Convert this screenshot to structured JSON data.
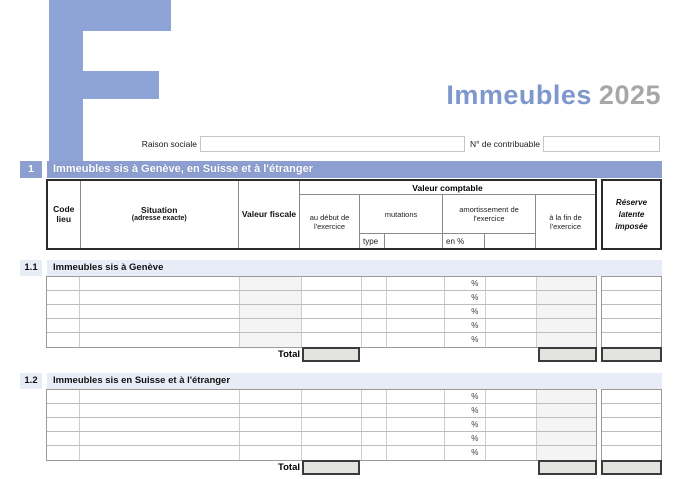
{
  "branding": {
    "form_letter": "F",
    "title_word": "Immeubles",
    "title_year": "2025"
  },
  "fields": {
    "raison_sociale": {
      "label": "Raison sociale",
      "value": ""
    },
    "contribuable": {
      "label": "N° de contribuable",
      "value": ""
    }
  },
  "section1": {
    "number": "1",
    "title": "Immeubles sis à Genève, en Suisse et à l'étranger"
  },
  "header": {
    "code_lieu": "Code lieu",
    "situation": "Situation",
    "situation_sub": "(adresse exacte)",
    "valeur_fiscale": "Valeur fiscale",
    "valeur_comptable": "Valeur comptable",
    "au_debut": "au début de l'exercice",
    "mutations": "mutations",
    "type": "type",
    "amortissement": "amortissement de l'exercice",
    "en_pct": "en %",
    "a_la_fin": "à la fin de l'exercice",
    "reserve": "Réserve latente imposée"
  },
  "percent_symbol": "%",
  "total_label": "Total",
  "subsections": [
    {
      "number": "1.1",
      "title": "Immeubles sis à Genève",
      "row_count": 5,
      "valeur_fiscale_shaded": true
    },
    {
      "number": "1.2",
      "title": "Immeubles sis en Suisse et à l'étranger",
      "row_count": 5,
      "valeur_fiscale_shaded": false
    }
  ],
  "colors": {
    "accent_blue": "#8c9fd0",
    "logo_blue": "#8fa4d6",
    "light_band": "#e8ecf7",
    "shaded_cell": "#f4f4f4",
    "title_blue": "#7e97cc",
    "title_gray": "#a7a7a7"
  }
}
